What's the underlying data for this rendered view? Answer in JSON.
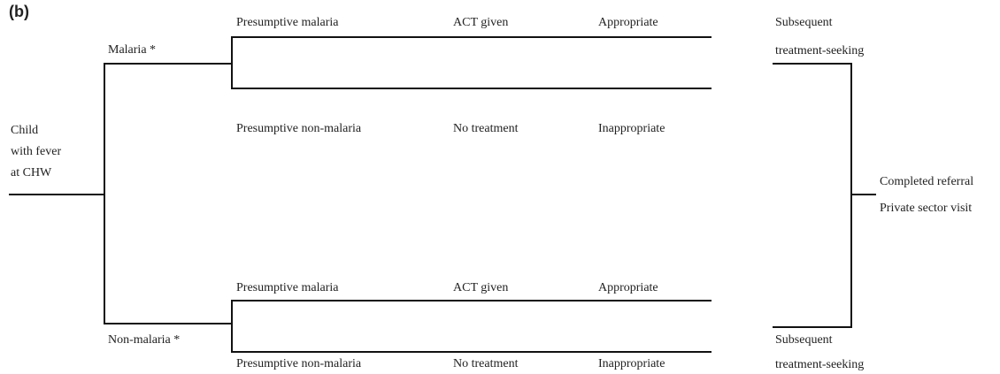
{
  "panel_label": "(b)",
  "root": {
    "lines": [
      "Child",
      "with fever",
      "at CHW"
    ]
  },
  "branches": [
    {
      "label": "Malaria *",
      "upper": {
        "diagnosis": "Presumptive malaria",
        "treatment": "ACT given",
        "assessment": "Appropriate"
      },
      "lower": {
        "diagnosis": "Presumptive non-malaria",
        "treatment": "No treatment",
        "assessment": "Inappropriate"
      },
      "followup": [
        "Subsequent",
        "treatment-seeking"
      ]
    },
    {
      "label": "Non-malaria *",
      "upper": {
        "diagnosis": "Presumptive malaria",
        "treatment": "ACT given",
        "assessment": "Appropriate"
      },
      "lower": {
        "diagnosis": "Presumptive non-malaria",
        "treatment": "No treatment",
        "assessment": "Inappropriate"
      },
      "followup": [
        "Subsequent",
        "treatment-seeking"
      ]
    }
  ],
  "outcomes": [
    "Completed referral",
    "Private sector visit"
  ]
}
